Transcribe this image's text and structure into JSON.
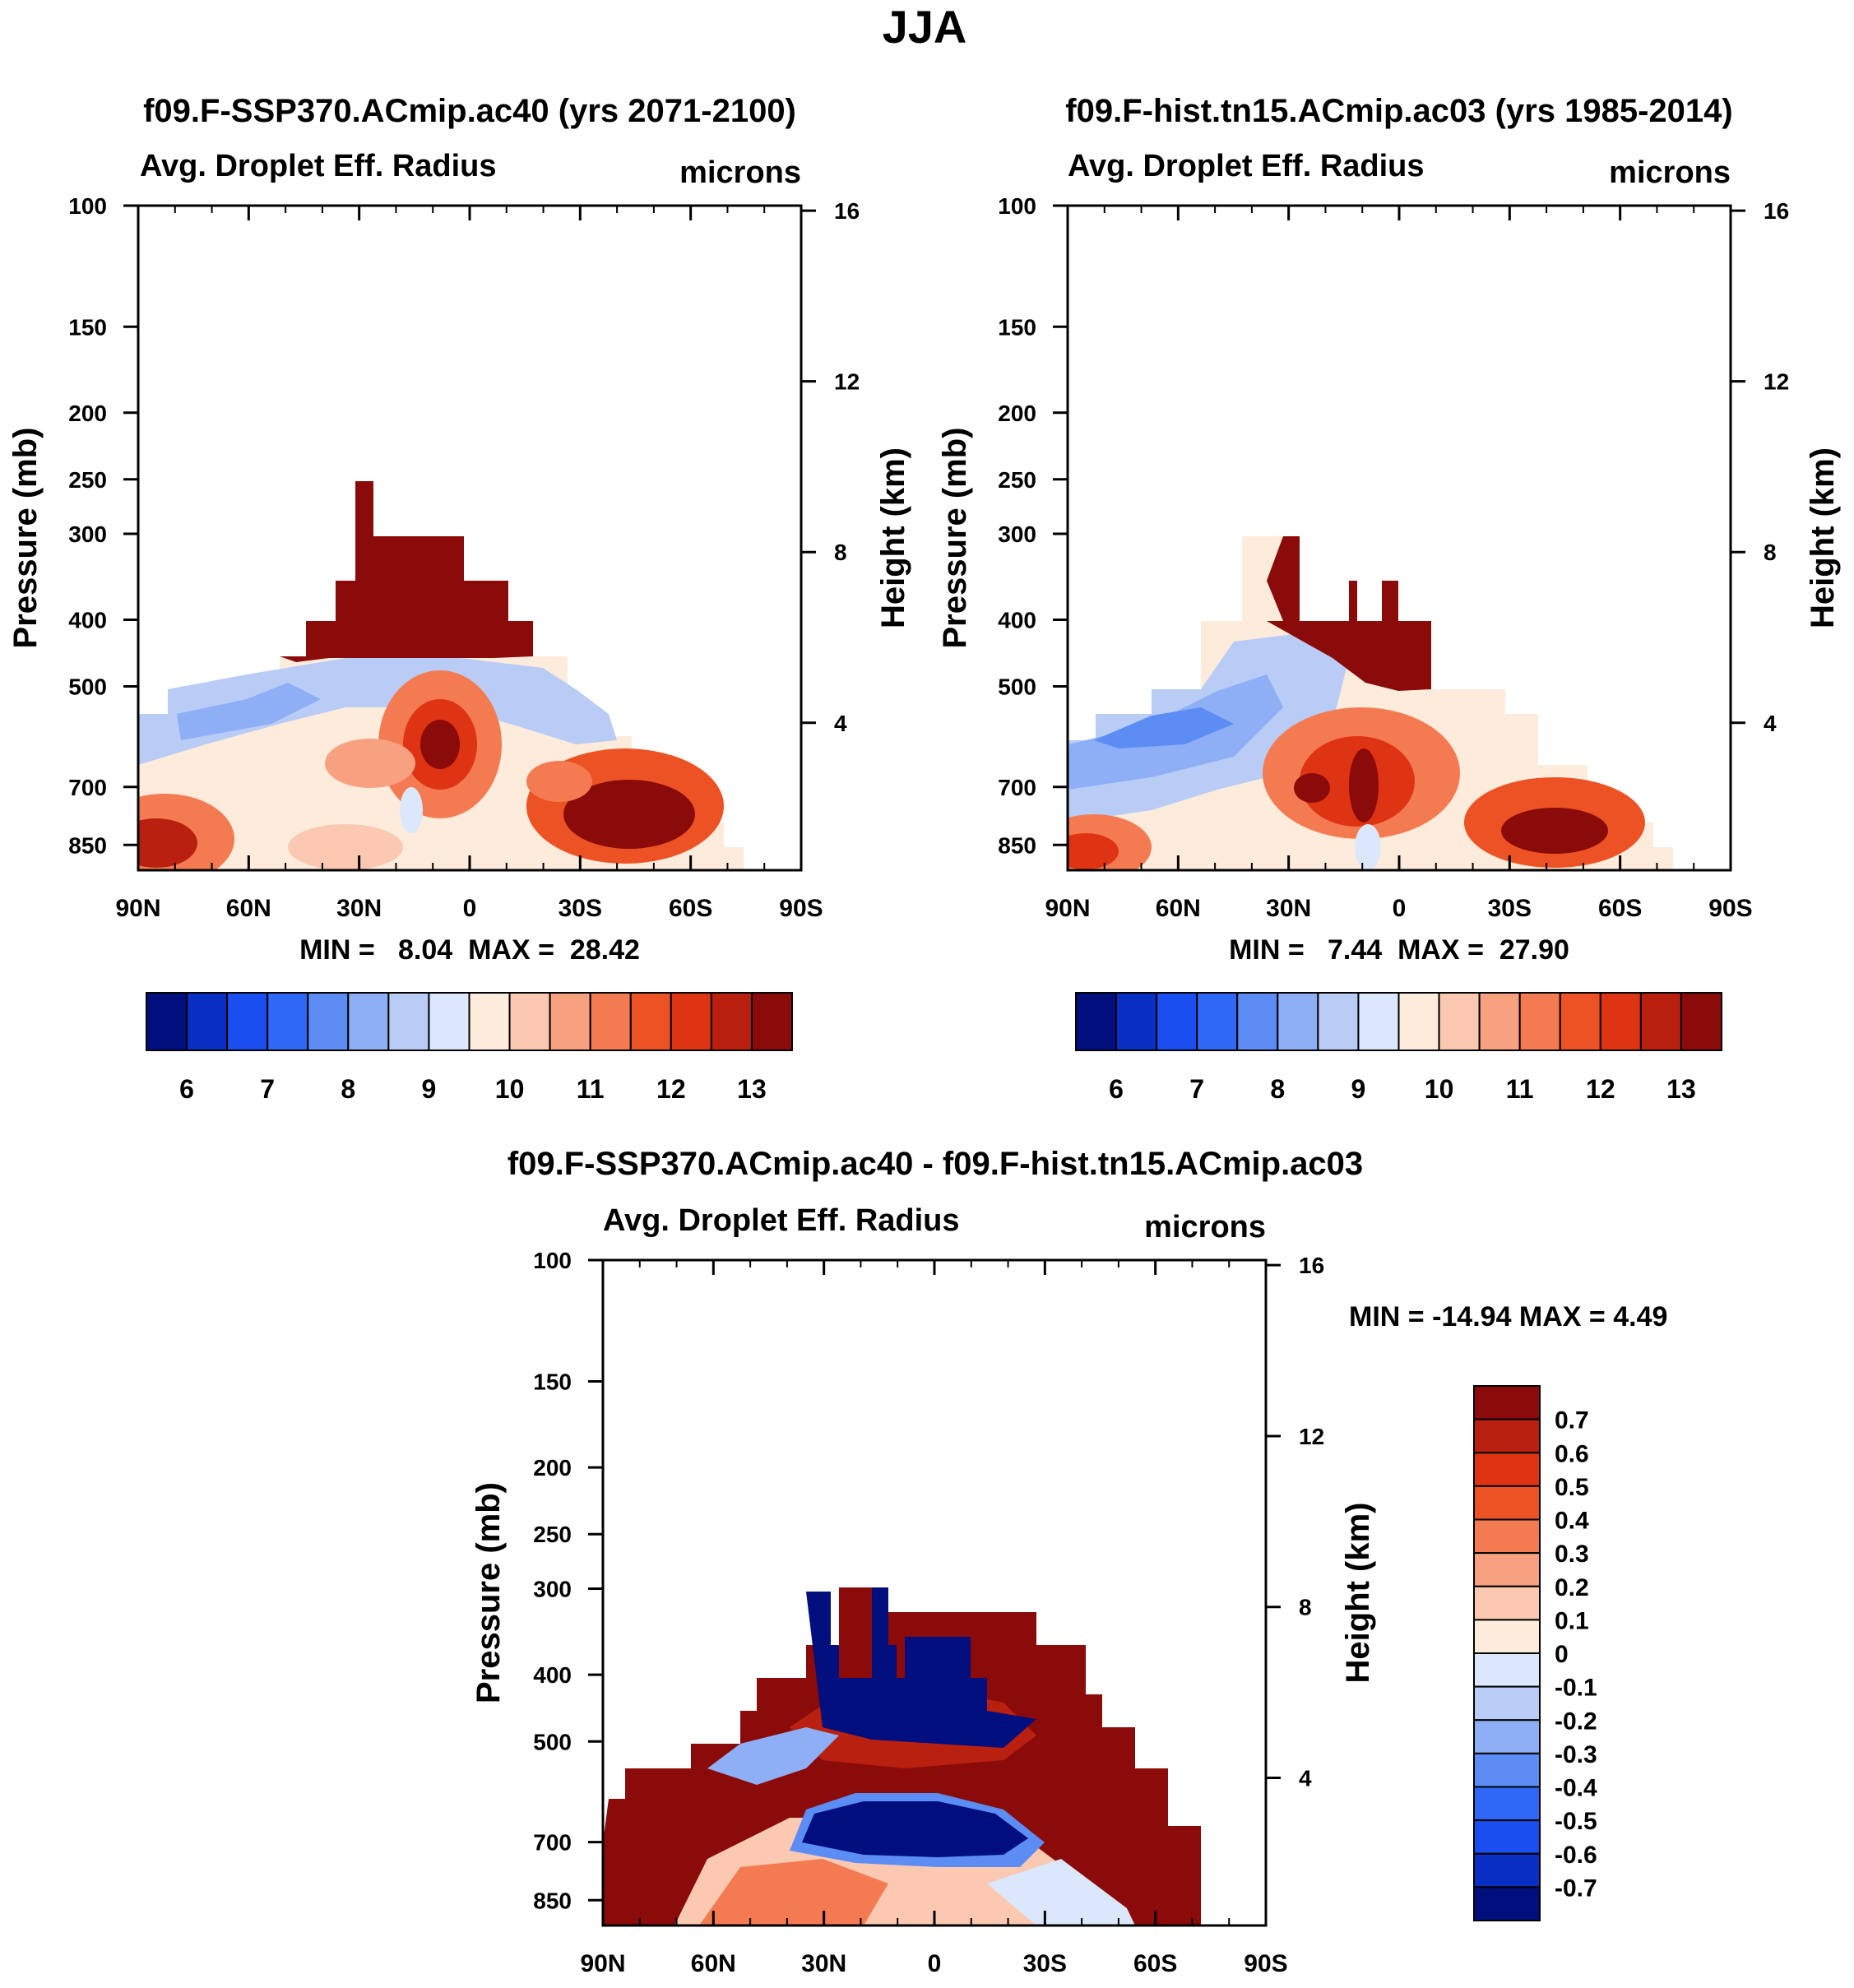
{
  "page_title": "JJA",
  "chart_data": [
    {
      "type": "heatmap",
      "title": "f09.F-SSP370.ACmip.ac40 (yrs 2071-2100)",
      "subtitle_left": "Avg. Droplet Eff. Radius",
      "subtitle_right": "microns",
      "ylabel": "Pressure (mb)",
      "ylabel_right": "Height (km)",
      "x_ticks": [
        "90N",
        "60N",
        "30N",
        "0",
        "30S",
        "60S",
        "90S"
      ],
      "y_ticks": [
        "100",
        "150",
        "200",
        "250",
        "300",
        "400",
        "500",
        "700",
        "850"
      ],
      "y_ticks_right": [
        "16",
        "12",
        "8",
        "4"
      ],
      "stats_label": "MIN =   8.04  MAX =  28.42",
      "min": 8.04,
      "max": 28.42,
      "colorbar_ticks": [
        "6",
        "7",
        "8",
        "9",
        "10",
        "11",
        "12",
        "13"
      ]
    },
    {
      "type": "heatmap",
      "title": "f09.F-hist.tn15.ACmip.ac03 (yrs 1985-2014)",
      "subtitle_left": "Avg. Droplet Eff. Radius",
      "subtitle_right": "microns",
      "ylabel": "Pressure (mb)",
      "ylabel_right": "Height (km)",
      "x_ticks": [
        "90N",
        "60N",
        "30N",
        "0",
        "30S",
        "60S",
        "90S"
      ],
      "y_ticks": [
        "100",
        "150",
        "200",
        "250",
        "300",
        "400",
        "500",
        "700",
        "850"
      ],
      "y_ticks_right": [
        "16",
        "12",
        "8",
        "4"
      ],
      "stats_label": "MIN =   7.44  MAX =  27.90",
      "min": 7.44,
      "max": 27.9,
      "colorbar_ticks": [
        "6",
        "7",
        "8",
        "9",
        "10",
        "11",
        "12",
        "13"
      ]
    },
    {
      "type": "heatmap",
      "title": "f09.F-SSP370.ACmip.ac40 - f09.F-hist.tn15.ACmip.ac03",
      "subtitle_left": "Avg. Droplet Eff. Radius",
      "subtitle_right": "microns",
      "ylabel": "Pressure (mb)",
      "ylabel_right": "Height (km)",
      "x_ticks": [
        "90N",
        "60N",
        "30N",
        "0",
        "30S",
        "60S",
        "90S"
      ],
      "y_ticks": [
        "100",
        "150",
        "200",
        "250",
        "300",
        "400",
        "500",
        "700",
        "850"
      ],
      "y_ticks_right": [
        "16",
        "12",
        "8",
        "4"
      ],
      "stats_label": "MIN = -14.94  MAX =   4.49",
      "min": -14.94,
      "max": 4.49,
      "colorbar_ticks": [
        "0.7",
        "0.6",
        "0.5",
        "0.4",
        "0.3",
        "0.2",
        "0.1",
        "0",
        "-0.1",
        "-0.2",
        "-0.3",
        "-0.4",
        "-0.5",
        "-0.6",
        "-0.7"
      ]
    }
  ],
  "colors": {
    "palette": [
      "#000e7e",
      "#0a2fc4",
      "#1a4ef0",
      "#2f68f7",
      "#5b8df5",
      "#8eaff5",
      "#b9ccf6",
      "#dbe8fb",
      "#fdebdc",
      "#fbc9b1",
      "#f8a181",
      "#f47b51",
      "#ed5224",
      "#df3413",
      "#b92010",
      "#8b0a0a"
    ]
  }
}
